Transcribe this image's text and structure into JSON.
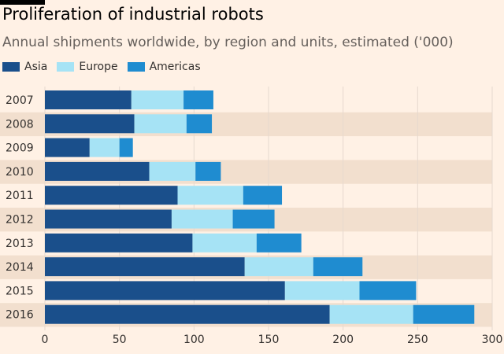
{
  "colors": {
    "background": "#fff1e5",
    "band": "#f2dfce",
    "grid": "#e6d9ce",
    "asia": "#1a4f8b",
    "europe": "#a6e3f5",
    "americas": "#1f8cd0"
  },
  "chart_data": {
    "type": "bar",
    "orientation": "horizontal",
    "stacked": true,
    "title": "Proliferation of industrial robots",
    "subtitle": "Annual shipments worldwide, by region and units, estimated ('000)",
    "categories": [
      "2007",
      "2008",
      "2009",
      "2010",
      "2011",
      "2012",
      "2013",
      "2014",
      "2015",
      "2016"
    ],
    "series": [
      {
        "name": "Asia",
        "color": "#1a4f8b",
        "values": [
          58,
          60,
          30,
          70,
          89,
          85,
          99,
          134,
          161,
          191
        ]
      },
      {
        "name": "Europe",
        "color": "#a6e3f5",
        "values": [
          35,
          35,
          20,
          31,
          44,
          41,
          43,
          46,
          50,
          56
        ]
      },
      {
        "name": "Americas",
        "color": "#1f8cd0",
        "values": [
          20,
          17,
          9,
          17,
          26,
          28,
          30,
          33,
          38,
          41
        ]
      }
    ],
    "xlim": [
      0,
      300
    ],
    "xticks": [
      "0",
      "50",
      "100",
      "150",
      "200",
      "250",
      "300"
    ],
    "legend": "top-left",
    "grid": true
  }
}
